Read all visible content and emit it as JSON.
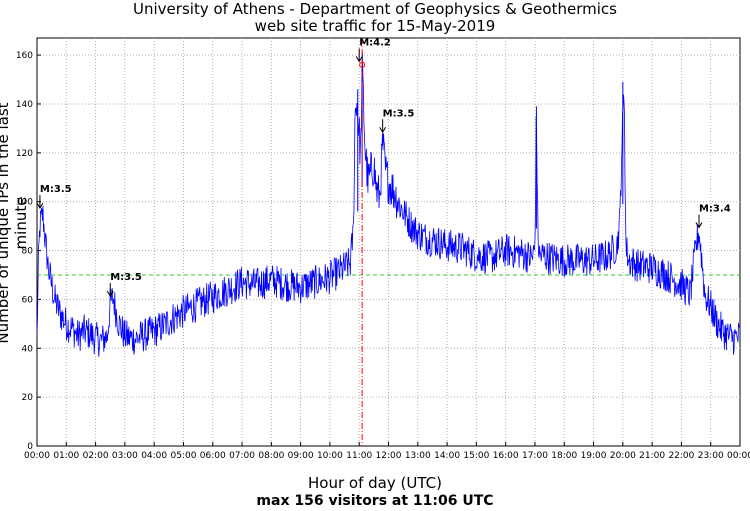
{
  "chart_data": {
    "type": "line",
    "title": "University of Athens - Department of Geophysics & Geothermics",
    "subtitle": "web site traffic for 15-May-2019",
    "xlabel": "Hour of day (UTC)",
    "ylabel": "Number of unique IPs in the last minute",
    "footnote": "max 156 visitors at 11:06 UTC",
    "xlim": [
      0,
      24
    ],
    "ylim": [
      0,
      167
    ],
    "yticks": [
      0,
      20,
      40,
      60,
      80,
      100,
      120,
      140,
      160
    ],
    "xticks": [
      "00:00",
      "01:00",
      "02:00",
      "03:00",
      "04:00",
      "05:00",
      "06:00",
      "07:00",
      "08:00",
      "09:00",
      "10:00",
      "11:00",
      "12:00",
      "13:00",
      "14:00",
      "15:00",
      "16:00",
      "17:00",
      "18:00",
      "19:00",
      "20:00",
      "21:00",
      "22:00",
      "23:00",
      "00:00"
    ],
    "grid": true,
    "reference_line": {
      "y": 70,
      "color": "#33cc33",
      "style": "dashed"
    },
    "max_marker": {
      "hour": 11.1,
      "value": 156,
      "color": "#ff0000"
    },
    "event_line": {
      "hour": 11.1,
      "color": "#ff0000",
      "style": "dash-dot"
    },
    "series_color": "#0000ff",
    "series": [
      {
        "x": [
          0,
          0.05,
          0.1,
          0.2,
          0.3,
          0.4,
          0.5,
          0.6,
          0.7,
          0.8,
          0.9,
          1.0,
          1.2,
          1.4,
          1.6,
          1.8,
          2.0,
          2.2,
          2.4,
          2.5,
          2.6,
          2.7,
          2.8,
          3.0,
          3.2,
          3.4,
          3.6,
          3.8,
          4.0,
          4.3,
          4.6,
          5.0,
          5.5,
          6.0,
          6.5,
          7.0,
          7.5,
          8.0,
          8.5,
          9.0,
          9.5,
          10.0,
          10.4,
          10.7,
          10.8,
          10.85,
          10.9,
          11.0,
          11.05,
          11.1,
          11.2,
          11.3,
          11.4,
          11.5,
          11.6,
          11.7,
          11.8,
          11.9,
          12.0,
          12.2,
          12.4,
          12.6,
          12.8,
          13.0,
          13.3,
          13.6,
          14.0,
          14.5,
          15.0,
          15.5,
          16.0,
          16.5,
          16.9,
          17.0,
          17.05,
          17.1,
          17.15,
          17.3,
          17.5,
          18.0,
          18.5,
          19.0,
          19.5,
          19.8,
          19.9,
          19.95,
          20.0,
          20.05,
          20.1,
          20.2,
          20.5,
          21.0,
          21.5,
          22.0,
          22.3,
          22.5,
          22.6,
          22.7,
          22.8,
          23.0,
          23.2,
          23.4,
          23.6,
          23.8,
          24.0
        ],
        "values": [
          44,
          75,
          90,
          95,
          82,
          72,
          66,
          60,
          57,
          54,
          52,
          50,
          48,
          45,
          47,
          46,
          44,
          43,
          45,
          58,
          61,
          55,
          50,
          45,
          44,
          44,
          45,
          46,
          47,
          49,
          52,
          55,
          58,
          61,
          64,
          67,
          66,
          68,
          66,
          65,
          67,
          69,
          72,
          75,
          88,
          132,
          143,
          128,
          118,
          156,
          122,
          108,
          112,
          115,
          104,
          102,
          124,
          112,
          108,
          104,
          98,
          94,
          90,
          87,
          85,
          84,
          82,
          81,
          78,
          77,
          80,
          79,
          77,
          80,
          139,
          86,
          78,
          78,
          77,
          76,
          76,
          76,
          78,
          82,
          92,
          118,
          132,
          148,
          82,
          76,
          74,
          73,
          70,
          66,
          62,
          82,
          88,
          76,
          62,
          57,
          51,
          47,
          45,
          44,
          45
        ]
      }
    ],
    "annotations": [
      {
        "label": "M:3.5",
        "hour": 0.1,
        "value": 97
      },
      {
        "label": "M:3.5",
        "hour": 2.5,
        "value": 61
      },
      {
        "label": "M:4.2",
        "hour": 11.0,
        "value": 157
      },
      {
        "label": "M:3.5",
        "hour": 11.8,
        "value": 128
      },
      {
        "label": "M:3.4",
        "hour": 22.6,
        "value": 89
      }
    ]
  }
}
